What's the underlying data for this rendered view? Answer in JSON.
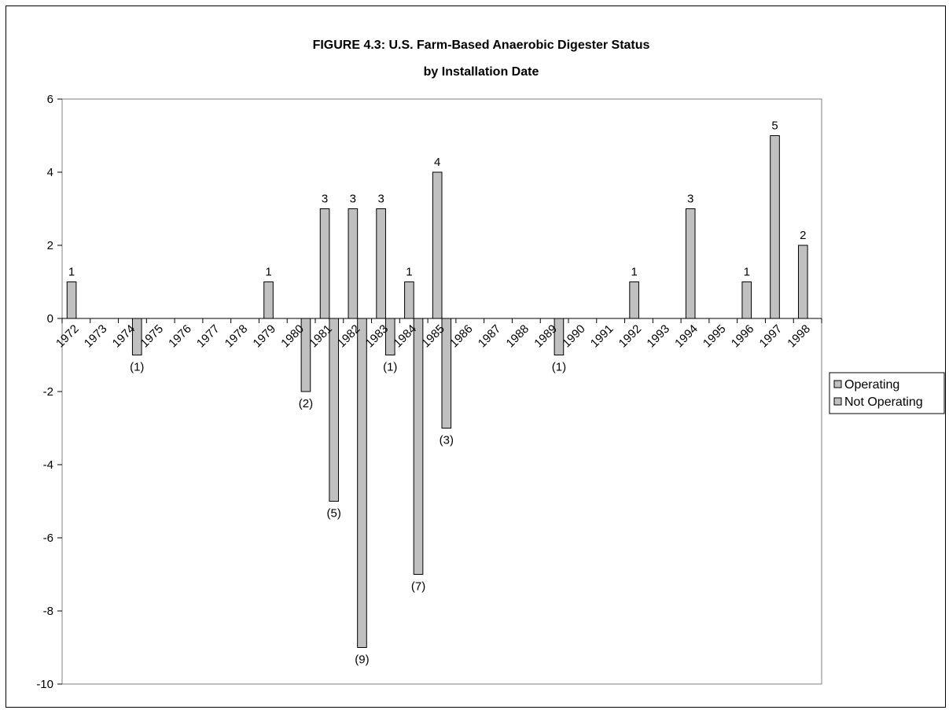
{
  "chart_data": {
    "type": "bar",
    "title": "FIGURE 4.3: U.S. Farm-Based Anaerobic Digester Status",
    "subtitle": "by Installation Date",
    "xlabel": "",
    "ylabel": "",
    "ylim": [
      -10,
      6
    ],
    "y_ticks": [
      "6",
      "4",
      "2",
      "0",
      "-2",
      "-4",
      "-6",
      "-8",
      "-10"
    ],
    "categories": [
      "1972",
      "1973",
      "1974",
      "1975",
      "1976",
      "1977",
      "1978",
      "1979",
      "1980",
      "1981",
      "1982",
      "1983",
      "1984",
      "1985",
      "1986",
      "1987",
      "1988",
      "1989",
      "1990",
      "1991",
      "1992",
      "1993",
      "1994",
      "1995",
      "1996",
      "1997",
      "1998"
    ],
    "series": [
      {
        "name": "Operating",
        "color": "#c0c0c0",
        "values": [
          1,
          0,
          0,
          0,
          0,
          0,
          0,
          1,
          0,
          3,
          3,
          3,
          1,
          4,
          0,
          0,
          0,
          0,
          0,
          0,
          1,
          0,
          3,
          0,
          1,
          5,
          2
        ],
        "data_labels": [
          "1",
          "",
          "",
          "",
          "",
          "",
          "",
          "1",
          "",
          "3",
          "3",
          "3",
          "1",
          "4",
          "",
          "",
          "",
          "",
          "",
          "",
          "1",
          "",
          "3",
          "",
          "1",
          "5",
          "2"
        ]
      },
      {
        "name": "Not Operating",
        "color": "#c0c0c0",
        "values": [
          0,
          0,
          -1,
          0,
          0,
          0,
          0,
          0,
          -2,
          -5,
          -9,
          -1,
          -7,
          -3,
          0,
          0,
          0,
          -1,
          0,
          0,
          0,
          0,
          0,
          0,
          0,
          0,
          0
        ],
        "data_labels": [
          "",
          "",
          "(1)",
          "",
          "",
          "",
          "",
          "",
          "(2)",
          "(5)",
          "(9)",
          "(1)",
          "(7)",
          "(3)",
          "",
          "",
          "",
          "(1)",
          "",
          "",
          "",
          "",
          "",
          "",
          "",
          "",
          ""
        ]
      }
    ],
    "grid": false,
    "legend_position": "right"
  }
}
